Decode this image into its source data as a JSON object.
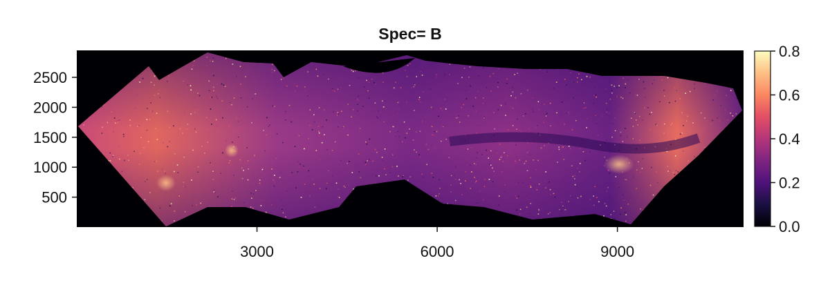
{
  "chart_data": {
    "type": "heatmap",
    "title": "Spec= B",
    "xlabel": "",
    "ylabel": "",
    "xlim": [
      0,
      11100
    ],
    "ylim": [
      0,
      2950
    ],
    "x_ticks": [
      {
        "value": 3000,
        "label": "3000"
      },
      {
        "value": 6000,
        "label": "6000"
      },
      {
        "value": 9000,
        "label": "9000"
      }
    ],
    "y_ticks": [
      {
        "value": 500,
        "label": "500"
      },
      {
        "value": 1000,
        "label": "1000"
      },
      {
        "value": 1500,
        "label": "1500"
      },
      {
        "value": 2000,
        "label": "2000"
      },
      {
        "value": 2500,
        "label": "2500"
      }
    ],
    "colorbar": {
      "colormap": "magma",
      "range": [
        0.0,
        0.8
      ],
      "ticks": [
        {
          "value": 0.0,
          "label": "0.0"
        },
        {
          "value": 0.2,
          "label": "0.2"
        },
        {
          "value": 0.4,
          "label": "0.4"
        },
        {
          "value": 0.6,
          "label": "0.6"
        },
        {
          "value": 0.8,
          "label": "0.8"
        }
      ]
    },
    "background_color": "#000004",
    "grid": false
  }
}
